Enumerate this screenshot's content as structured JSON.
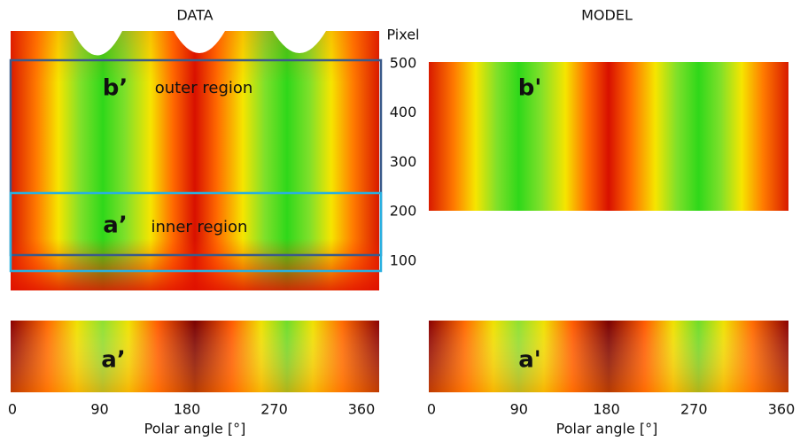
{
  "titles": {
    "data": "DATA",
    "model": "MODEL"
  },
  "pixel_axis": {
    "label": "Pixel",
    "ticks": [
      500,
      400,
      300,
      200,
      100
    ]
  },
  "data_panel": {
    "b_label": "b’",
    "outer_label": "outer region",
    "a_label": "a’",
    "inner_label": "inner region",
    "bottom_label": "a’"
  },
  "model_panel": {
    "b_label": "b'",
    "bottom_label": "a'"
  },
  "x_axes": [
    {
      "ticks": [
        0,
        90,
        180,
        270,
        360
      ],
      "label": "Polar angle [°]"
    },
    {
      "ticks": [
        0,
        90,
        180,
        270,
        360
      ],
      "label": "Polar angle [°]"
    }
  ]
}
